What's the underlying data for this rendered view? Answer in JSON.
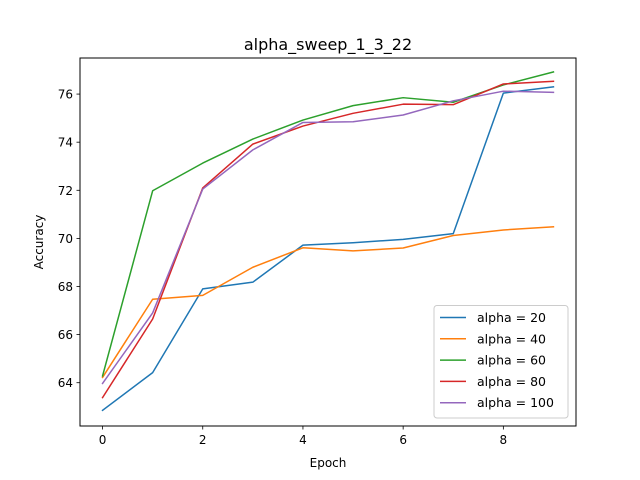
{
  "chart_data": {
    "type": "line",
    "title": "alpha_sweep_1_3_22",
    "xlabel": "Epoch",
    "ylabel": "Accuracy",
    "x": [
      0,
      1,
      2,
      3,
      4,
      5,
      6,
      7,
      8,
      9
    ],
    "xlim": [
      -0.45,
      9.45
    ],
    "ylim": [
      62.2,
      77.5
    ],
    "xticks": [
      0,
      2,
      4,
      6,
      8
    ],
    "yticks": [
      64,
      66,
      68,
      70,
      72,
      74,
      76
    ],
    "grid": false,
    "legend_position": "lower-right",
    "series": [
      {
        "name": "alpha = 20",
        "color": "#1f77b4",
        "values": [
          62.85,
          64.42,
          67.9,
          68.18,
          69.72,
          69.82,
          69.96,
          70.2,
          76.04,
          76.3
        ]
      },
      {
        "name": "alpha = 40",
        "color": "#ff7f0e",
        "values": [
          64.22,
          67.47,
          67.63,
          68.8,
          69.61,
          69.48,
          69.6,
          70.12,
          70.35,
          70.48
        ]
      },
      {
        "name": "alpha = 60",
        "color": "#2ca02c",
        "values": [
          64.28,
          71.98,
          73.13,
          74.13,
          74.92,
          75.52,
          75.85,
          75.66,
          76.38,
          76.92
        ]
      },
      {
        "name": "alpha = 80",
        "color": "#d62728",
        "values": [
          63.38,
          66.65,
          72.1,
          73.92,
          74.67,
          75.2,
          75.58,
          75.56,
          76.42,
          76.53
        ]
      },
      {
        "name": "alpha = 100",
        "color": "#9467bd",
        "values": [
          63.97,
          66.9,
          72.05,
          73.68,
          74.82,
          74.85,
          75.13,
          75.72,
          76.12,
          76.07
        ]
      }
    ]
  }
}
